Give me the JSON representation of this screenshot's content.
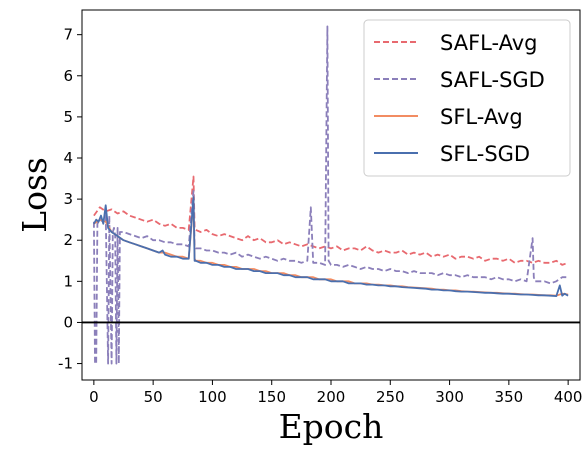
{
  "chart_data": {
    "type": "line",
    "xlabel": "Epoch",
    "ylabel": "Loss",
    "xlim": [
      -10,
      410
    ],
    "ylim": [
      -1.4,
      7.6
    ],
    "xticks": [
      0,
      50,
      100,
      150,
      200,
      250,
      300,
      350,
      400
    ],
    "yticks": [
      -1,
      0,
      1,
      2,
      3,
      4,
      5,
      6,
      7
    ],
    "hline_y": 0,
    "legend_position": "top-right",
    "series": [
      {
        "name": "SAFL-Avg",
        "color": "#e8696f",
        "dash": "dashed",
        "x": [
          0,
          5,
          10,
          15,
          20,
          25,
          30,
          35,
          40,
          45,
          50,
          55,
          60,
          65,
          70,
          75,
          80,
          84,
          85,
          86,
          90,
          95,
          100,
          105,
          110,
          115,
          120,
          125,
          130,
          135,
          140,
          145,
          150,
          155,
          160,
          165,
          170,
          175,
          180,
          185,
          190,
          195,
          200,
          205,
          210,
          215,
          220,
          225,
          230,
          235,
          240,
          245,
          250,
          255,
          260,
          265,
          270,
          275,
          280,
          285,
          290,
          295,
          300,
          305,
          310,
          315,
          320,
          325,
          330,
          335,
          340,
          345,
          350,
          355,
          360,
          365,
          370,
          375,
          380,
          385,
          390,
          395,
          400
        ],
        "values": [
          2.6,
          2.8,
          2.7,
          2.75,
          2.65,
          2.7,
          2.6,
          2.55,
          2.5,
          2.45,
          2.5,
          2.4,
          2.35,
          2.4,
          2.3,
          2.3,
          2.25,
          3.55,
          2.3,
          2.25,
          2.2,
          2.25,
          2.15,
          2.1,
          2.15,
          2.1,
          2.05,
          2.0,
          2.1,
          2.0,
          2.05,
          1.95,
          1.95,
          2.0,
          1.9,
          1.95,
          1.9,
          1.85,
          1.9,
          1.85,
          1.8,
          1.85,
          1.8,
          1.85,
          1.75,
          1.8,
          1.8,
          1.75,
          1.85,
          1.75,
          1.7,
          1.75,
          1.7,
          1.7,
          1.75,
          1.65,
          1.7,
          1.65,
          1.7,
          1.6,
          1.65,
          1.6,
          1.65,
          1.55,
          1.6,
          1.6,
          1.55,
          1.6,
          1.5,
          1.55,
          1.55,
          1.5,
          1.55,
          1.45,
          1.5,
          1.5,
          1.45,
          1.5,
          1.45,
          1.45,
          1.5,
          1.4,
          1.45
        ]
      },
      {
        "name": "SAFL-SGD",
        "color": "#8b7fba",
        "dash": "dashed",
        "x": [
          0,
          1,
          2,
          3,
          5,
          8,
          10,
          12,
          13,
          15,
          16,
          17,
          18,
          19,
          20,
          21,
          22,
          25,
          30,
          35,
          40,
          45,
          50,
          55,
          60,
          65,
          70,
          75,
          80,
          84,
          85,
          86,
          90,
          95,
          100,
          105,
          110,
          115,
          120,
          125,
          130,
          135,
          140,
          145,
          150,
          155,
          160,
          165,
          170,
          175,
          180,
          183,
          185,
          190,
          195,
          197,
          198,
          199,
          200,
          205,
          210,
          215,
          220,
          225,
          230,
          235,
          240,
          245,
          250,
          255,
          260,
          265,
          270,
          275,
          280,
          285,
          290,
          295,
          300,
          305,
          310,
          315,
          320,
          325,
          330,
          335,
          340,
          345,
          350,
          355,
          360,
          365,
          370,
          371,
          372,
          375,
          380,
          385,
          390,
          395,
          400
        ],
        "values": [
          2.45,
          -1.0,
          -1.0,
          2.4,
          2.5,
          2.45,
          2.7,
          -1.0,
          2.6,
          -1.0,
          2.2,
          2.3,
          2.1,
          -1.0,
          2.3,
          -1.0,
          2.2,
          2.2,
          2.15,
          2.1,
          2.05,
          2.1,
          2.0,
          2.0,
          1.95,
          1.95,
          1.9,
          1.9,
          1.85,
          3.2,
          1.85,
          1.8,
          1.8,
          1.75,
          1.75,
          1.7,
          1.7,
          1.65,
          1.7,
          1.6,
          1.65,
          1.6,
          1.55,
          1.6,
          1.55,
          1.5,
          1.55,
          1.5,
          1.5,
          1.45,
          1.5,
          2.8,
          1.45,
          1.45,
          1.4,
          7.2,
          1.5,
          1.45,
          1.4,
          1.4,
          1.35,
          1.4,
          1.35,
          1.3,
          1.35,
          1.3,
          1.3,
          1.25,
          1.3,
          1.25,
          1.25,
          1.2,
          1.25,
          1.2,
          1.2,
          1.2,
          1.15,
          1.2,
          1.15,
          1.15,
          1.1,
          1.15,
          1.1,
          1.1,
          1.1,
          1.05,
          1.1,
          1.05,
          1.05,
          1.0,
          1.05,
          1.0,
          2.05,
          1.1,
          1.0,
          1.0,
          1.0,
          0.95,
          1.0,
          1.1,
          1.1
        ]
      },
      {
        "name": "SFL-Avg",
        "color": "#f28c62",
        "dash": "solid",
        "x": [
          0,
          5,
          10,
          15,
          20,
          25,
          30,
          35,
          40,
          45,
          50,
          55,
          60,
          65,
          70,
          75,
          80,
          84,
          85,
          86,
          90,
          95,
          100,
          105,
          110,
          115,
          120,
          125,
          130,
          135,
          140,
          145,
          150,
          155,
          160,
          165,
          170,
          175,
          180,
          185,
          190,
          195,
          200,
          205,
          210,
          215,
          220,
          225,
          230,
          235,
          240,
          245,
          250,
          255,
          260,
          265,
          270,
          275,
          280,
          285,
          290,
          295,
          300,
          305,
          310,
          315,
          320,
          325,
          330,
          335,
          340,
          345,
          350,
          355,
          360,
          365,
          370,
          375,
          380,
          385,
          390,
          395,
          400
        ],
        "values": [
          2.4,
          2.5,
          2.45,
          2.2,
          2.1,
          2.0,
          1.95,
          1.9,
          1.85,
          1.8,
          1.75,
          1.7,
          1.7,
          1.65,
          1.6,
          1.6,
          1.55,
          2.95,
          1.55,
          1.5,
          1.5,
          1.45,
          1.45,
          1.4,
          1.4,
          1.35,
          1.35,
          1.3,
          1.3,
          1.3,
          1.25,
          1.25,
          1.2,
          1.2,
          1.2,
          1.15,
          1.15,
          1.1,
          1.1,
          1.1,
          1.05,
          1.05,
          1.05,
          1.0,
          1.0,
          1.0,
          0.95,
          0.95,
          0.95,
          0.92,
          0.92,
          0.9,
          0.9,
          0.88,
          0.88,
          0.86,
          0.85,
          0.84,
          0.83,
          0.82,
          0.8,
          0.8,
          0.78,
          0.78,
          0.76,
          0.75,
          0.75,
          0.74,
          0.73,
          0.72,
          0.72,
          0.71,
          0.7,
          0.7,
          0.69,
          0.68,
          0.68,
          0.67,
          0.66,
          0.66,
          0.65,
          0.7,
          0.68
        ]
      },
      {
        "name": "SFL-SGD",
        "color": "#4a6fae",
        "dash": "solid",
        "x": [
          0,
          2,
          4,
          6,
          8,
          10,
          12,
          15,
          20,
          25,
          30,
          35,
          40,
          45,
          50,
          55,
          58,
          60,
          65,
          70,
          75,
          80,
          84,
          85,
          86,
          90,
          95,
          100,
          105,
          110,
          115,
          120,
          125,
          130,
          135,
          140,
          145,
          150,
          155,
          160,
          165,
          170,
          175,
          180,
          185,
          190,
          195,
          200,
          205,
          210,
          215,
          220,
          225,
          230,
          235,
          240,
          245,
          250,
          255,
          260,
          265,
          270,
          275,
          280,
          285,
          290,
          295,
          300,
          305,
          310,
          315,
          320,
          325,
          330,
          335,
          340,
          345,
          350,
          355,
          360,
          365,
          370,
          375,
          380,
          385,
          390,
          393,
          395,
          397,
          400
        ],
        "values": [
          2.4,
          2.5,
          2.45,
          2.6,
          2.4,
          2.85,
          2.3,
          2.2,
          2.1,
          2.0,
          1.95,
          1.9,
          1.85,
          1.8,
          1.75,
          1.7,
          1.75,
          1.65,
          1.6,
          1.6,
          1.55,
          1.55,
          3.05,
          1.5,
          1.5,
          1.45,
          1.45,
          1.4,
          1.4,
          1.35,
          1.35,
          1.3,
          1.3,
          1.3,
          1.25,
          1.25,
          1.2,
          1.2,
          1.2,
          1.15,
          1.15,
          1.1,
          1.1,
          1.1,
          1.05,
          1.05,
          1.05,
          1.0,
          1.0,
          1.0,
          0.95,
          0.95,
          0.95,
          0.92,
          0.92,
          0.9,
          0.9,
          0.88,
          0.88,
          0.86,
          0.85,
          0.84,
          0.83,
          0.82,
          0.8,
          0.8,
          0.78,
          0.78,
          0.76,
          0.75,
          0.75,
          0.74,
          0.73,
          0.72,
          0.72,
          0.71,
          0.7,
          0.7,
          0.69,
          0.68,
          0.68,
          0.67,
          0.66,
          0.66,
          0.65,
          0.64,
          0.9,
          0.65,
          0.7,
          0.65
        ]
      }
    ]
  }
}
